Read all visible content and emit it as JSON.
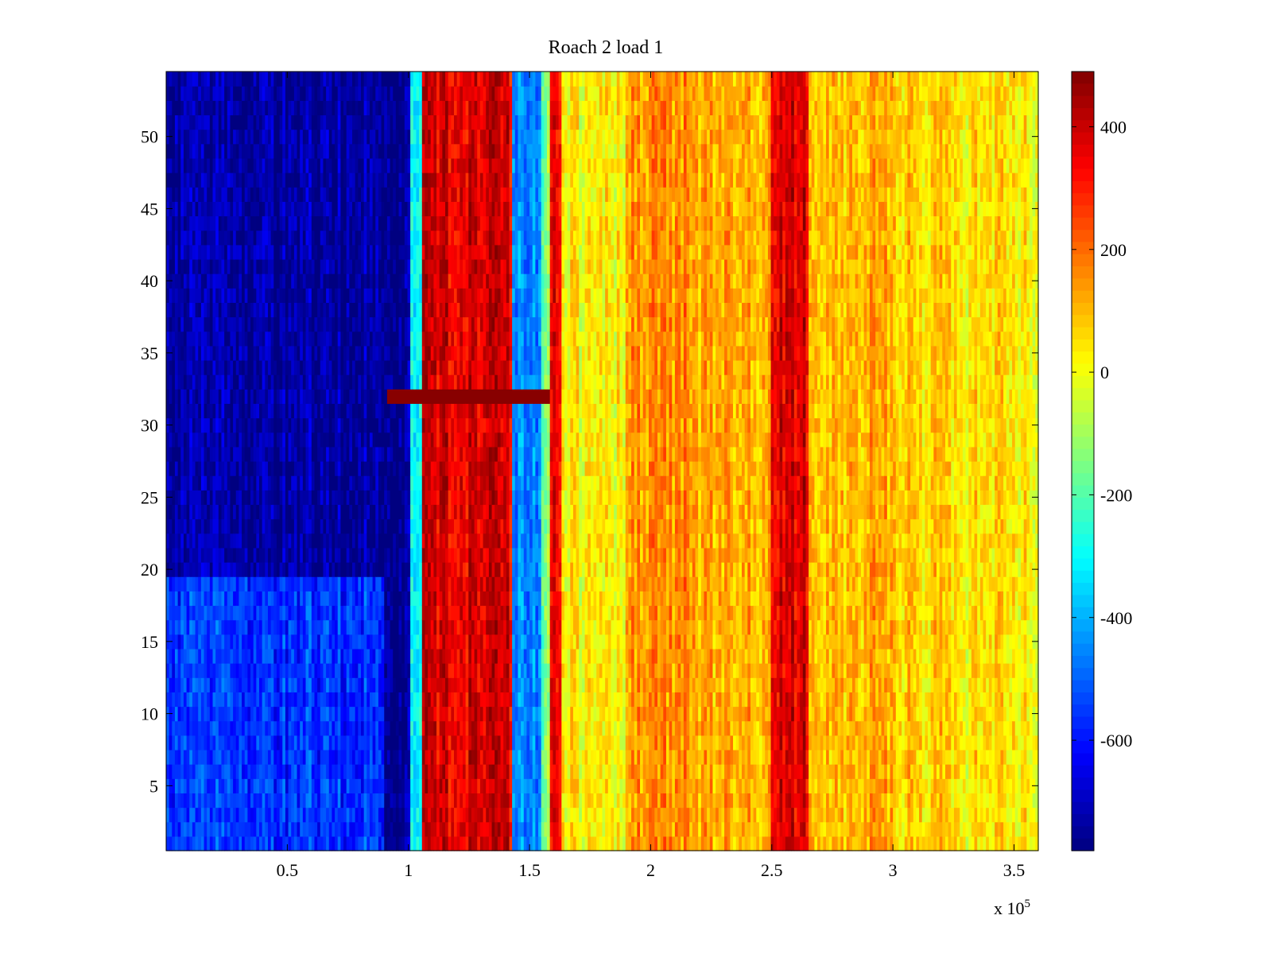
{
  "chart_data": {
    "type": "heatmap",
    "title": "Roach 2 load 1",
    "xlabel": "",
    "ylabel": "",
    "x_multiplier_label": "x 10",
    "x_multiplier_exponent": "5",
    "xlim": [
      0,
      360000
    ],
    "ylim": [
      0.5,
      54.5
    ],
    "x_ticks": [
      0.5,
      1,
      1.5,
      2,
      2.5,
      3,
      3.5
    ],
    "x_tick_labels": [
      "0.5",
      "1",
      "1.5",
      "2",
      "2.5",
      "3",
      "3.5"
    ],
    "y_ticks": [
      5,
      10,
      15,
      20,
      25,
      30,
      35,
      40,
      45,
      50
    ],
    "y_tick_labels": [
      "5",
      "10",
      "15",
      "20",
      "25",
      "30",
      "35",
      "40",
      "45",
      "50"
    ],
    "colorbar": {
      "colormap": "jet",
      "clim": [
        -780,
        490
      ],
      "ticks": [
        400,
        200,
        0,
        -200,
        -400,
        -600
      ],
      "tick_labels": [
        "400",
        "200",
        "0",
        "-200",
        "-400",
        "-600"
      ]
    },
    "rows": 54,
    "column_bands": [
      {
        "x_start": 0,
        "x_end": 90000,
        "value_upper_rows": -740,
        "value_lower_rows": -560,
        "lower_rows_max": 19
      },
      {
        "x_start": 90000,
        "x_end": 101000,
        "value": -760
      },
      {
        "x_start": 101000,
        "x_end": 106000,
        "value": -320
      },
      {
        "x_start": 106000,
        "x_end": 143000,
        "value": 370
      },
      {
        "x_start": 143000,
        "x_end": 155000,
        "value": -450
      },
      {
        "x_start": 155000,
        "x_end": 159000,
        "value": -150
      },
      {
        "x_start": 159000,
        "x_end": 163000,
        "value": 330
      },
      {
        "x_start": 163000,
        "x_end": 190000,
        "value": 20
      },
      {
        "x_start": 190000,
        "x_end": 220000,
        "value": 150
      },
      {
        "x_start": 220000,
        "x_end": 250000,
        "value": 120
      },
      {
        "x_start": 250000,
        "x_end": 265000,
        "value": 370
      },
      {
        "x_start": 265000,
        "x_end": 300000,
        "value": 110
      },
      {
        "x_start": 300000,
        "x_end": 330000,
        "value": 70
      },
      {
        "x_start": 330000,
        "x_end": 360000,
        "value": 40
      }
    ],
    "anomaly_row": {
      "row": 32,
      "x_start": 91000,
      "x_end": 159000,
      "value": 480
    }
  }
}
